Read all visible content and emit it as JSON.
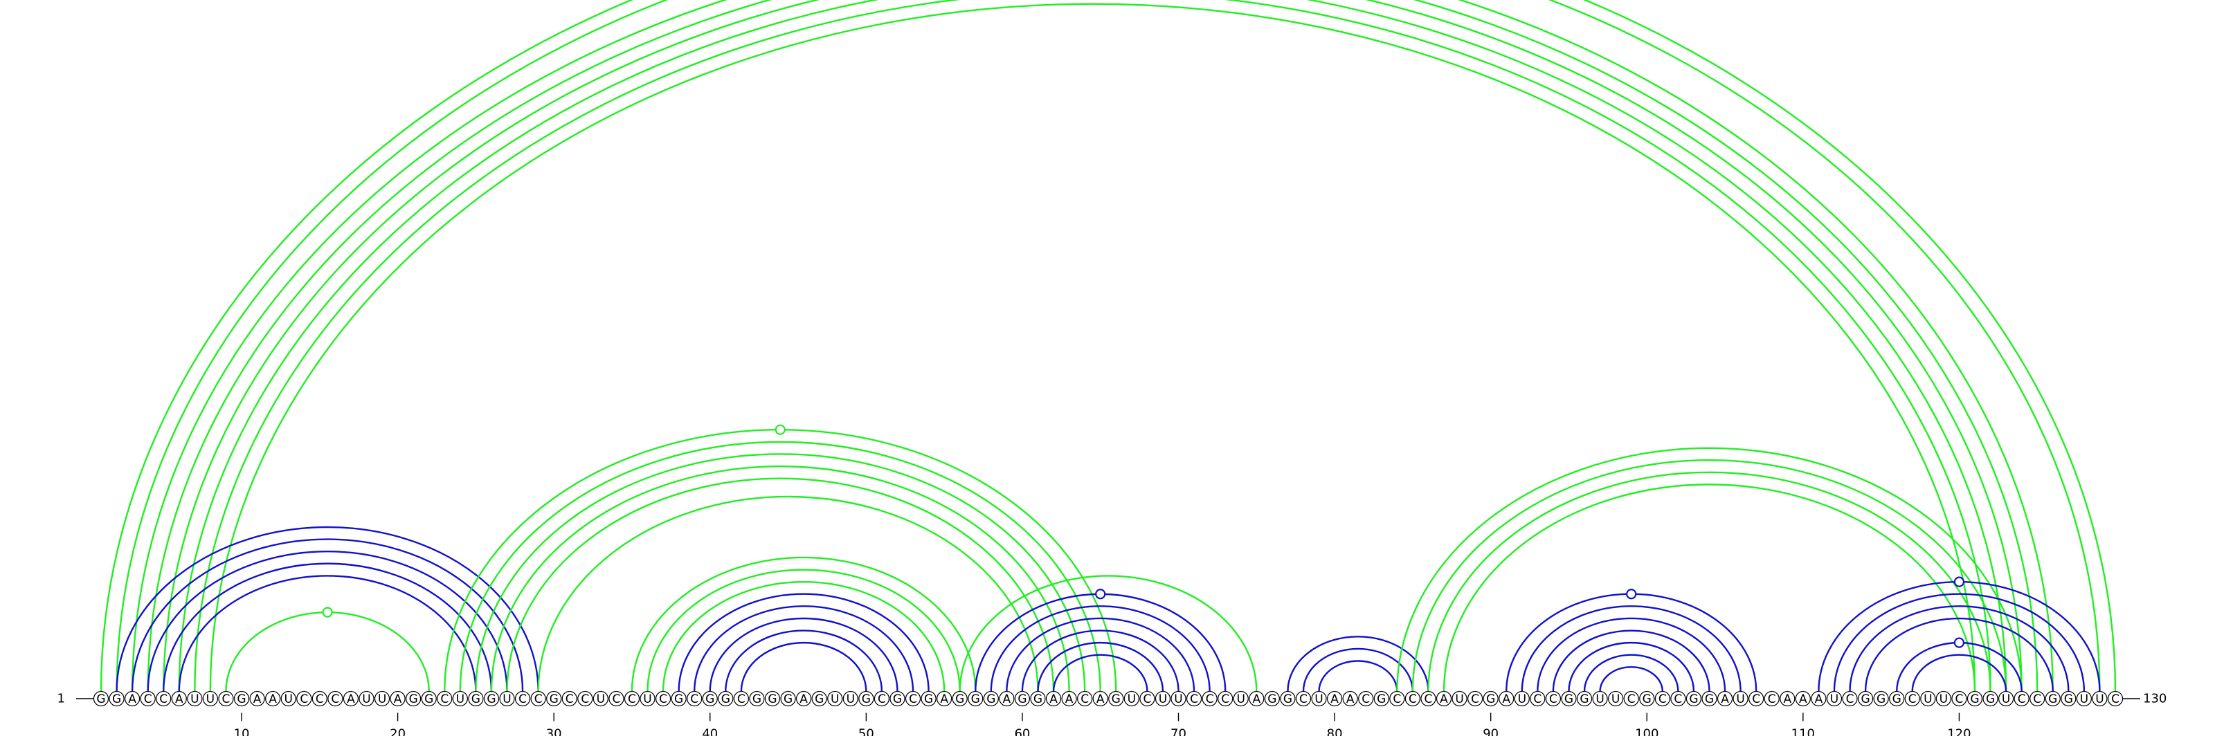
{
  "sequence": "GGACCAUUCGAAUCCCAUUAGGCUGGUCCGCCUCCUCGCGGCGGGAGUUGCGCGAGGGAGGAACAGUCUUCCCUAGGCUAACGCCCAUCGAUCCGGUUCGCCGGAUCCAAAUCGGGCUUCGGUCCGGUUC",
  "start_label": "1",
  "end_label": "130",
  "ticks": [
    10,
    20,
    30,
    40,
    50,
    60,
    70,
    80,
    90,
    100,
    110,
    120
  ],
  "colors": {
    "green": "#22ee22",
    "blue": "#1111cc",
    "tick": "#000000"
  },
  "arc_groups": [
    {
      "color": "green",
      "pairs": [
        [
          1,
          130
        ],
        [
          2,
          129
        ],
        [
          3,
          126
        ],
        [
          4,
          125
        ],
        [
          5,
          124
        ],
        [
          6,
          123
        ],
        [
          7,
          122
        ],
        [
          8,
          121
        ]
      ],
      "apex_marker": true
    },
    {
      "color": "green",
      "pairs": [
        [
          9,
          22
        ]
      ],
      "apex_marker": true
    },
    {
      "color": "blue",
      "pairs": [
        [
          2,
          29
        ],
        [
          3,
          28
        ],
        [
          4,
          27
        ],
        [
          5,
          26
        ],
        [
          6,
          25
        ]
      ],
      "apex_marker": false
    },
    {
      "color": "green",
      "pairs": [
        [
          23,
          66
        ],
        [
          24,
          65
        ],
        [
          25,
          64
        ],
        [
          26,
          63
        ],
        [
          27,
          62
        ],
        [
          29,
          61
        ]
      ],
      "apex_marker": true
    },
    {
      "color": "green",
      "pairs": [
        [
          35,
          57
        ],
        [
          36,
          56
        ],
        [
          37,
          55
        ]
      ],
      "apex_marker": false
    },
    {
      "color": "blue",
      "pairs": [
        [
          38,
          54
        ],
        [
          39,
          53
        ],
        [
          40,
          52
        ],
        [
          41,
          51
        ],
        [
          42,
          50
        ]
      ],
      "apex_marker": false
    },
    {
      "color": "green",
      "pairs": [
        [
          56,
          75
        ]
      ],
      "apex_marker": false
    },
    {
      "color": "blue",
      "pairs": [
        [
          57,
          73
        ],
        [
          58,
          72
        ],
        [
          59,
          71
        ],
        [
          60,
          70
        ],
        [
          61,
          69
        ],
        [
          62,
          68
        ]
      ],
      "apex_marker": true
    },
    {
      "color": "blue",
      "pairs": [
        [
          77,
          86
        ],
        [
          78,
          85
        ],
        [
          79,
          84
        ]
      ],
      "apex_marker": false
    },
    {
      "color": "green",
      "pairs": [
        [
          84,
          124
        ],
        [
          85,
          123
        ],
        [
          86,
          122
        ],
        [
          87,
          121
        ]
      ],
      "apex_marker": false
    },
    {
      "color": "blue",
      "pairs": [
        [
          91,
          107
        ],
        [
          92,
          106
        ],
        [
          93,
          105
        ],
        [
          94,
          104
        ],
        [
          95,
          103
        ],
        [
          96,
          102
        ],
        [
          97,
          101
        ]
      ],
      "apex_marker": true
    },
    {
      "color": "blue",
      "pairs": [
        [
          111,
          129
        ],
        [
          112,
          128
        ],
        [
          113,
          127
        ],
        [
          114,
          126
        ]
      ],
      "apex_marker": true
    },
    {
      "color": "blue",
      "pairs": [
        [
          116,
          124
        ],
        [
          117,
          123
        ]
      ],
      "apex_marker": true
    }
  ]
}
